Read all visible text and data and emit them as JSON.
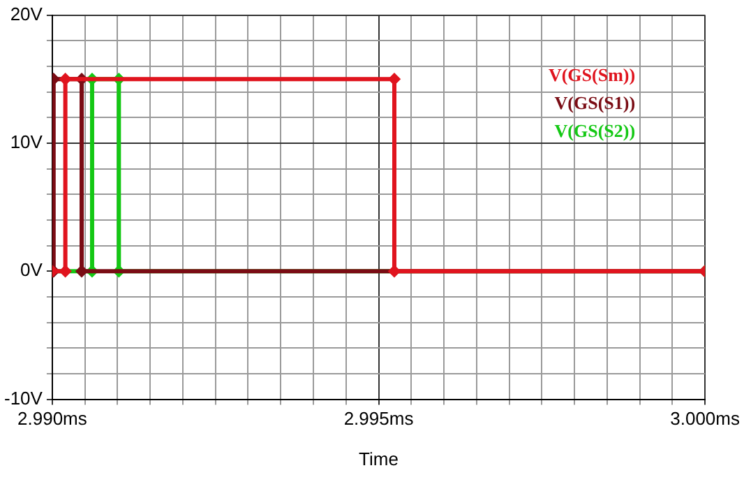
{
  "chart_data": {
    "type": "line",
    "xlabel": "Time",
    "legend": "top right",
    "grid": true,
    "marker": "diamond",
    "line_style": "solid",
    "xlim": [
      2.99,
      3.0
    ],
    "xticks": [
      {
        "value": 2.99,
        "label": "2.990ms"
      },
      {
        "value": 2.9905,
        "label": null
      },
      {
        "value": 2.991,
        "label": null
      },
      {
        "value": 2.9915,
        "label": null
      },
      {
        "value": 2.992,
        "label": null
      },
      {
        "value": 2.9925,
        "label": null
      },
      {
        "value": 2.993,
        "label": null
      },
      {
        "value": 2.9935,
        "label": null
      },
      {
        "value": 2.994,
        "label": null
      },
      {
        "value": 2.9945,
        "label": null
      },
      {
        "value": 2.995,
        "label": "2.995ms"
      },
      {
        "value": 2.9955,
        "label": null
      },
      {
        "value": 2.996,
        "label": null
      },
      {
        "value": 2.9965,
        "label": null
      },
      {
        "value": 2.997,
        "label": null
      },
      {
        "value": 2.9975,
        "label": null
      },
      {
        "value": 2.998,
        "label": null
      },
      {
        "value": 2.9985,
        "label": null
      },
      {
        "value": 2.999,
        "label": null
      },
      {
        "value": 2.9995,
        "label": null
      },
      {
        "value": 3.0,
        "label": "3.000ms"
      }
    ],
    "ylim": [
      -10,
      20
    ],
    "yticks": [
      {
        "value": -10,
        "label": "-10V"
      },
      {
        "value": -8,
        "label": null
      },
      {
        "value": -6,
        "label": null
      },
      {
        "value": -4,
        "label": null
      },
      {
        "value": -2,
        "label": null
      },
      {
        "value": 0,
        "label": "0V"
      },
      {
        "value": 2,
        "label": null
      },
      {
        "value": 4,
        "label": null
      },
      {
        "value": 6,
        "label": null
      },
      {
        "value": 8,
        "label": null
      },
      {
        "value": 10,
        "label": "10V"
      },
      {
        "value": 12,
        "label": null
      },
      {
        "value": 14,
        "label": null
      },
      {
        "value": 16,
        "label": null
      },
      {
        "value": 18,
        "label": null
      },
      {
        "value": 20,
        "label": "20V"
      }
    ],
    "series": [
      {
        "name": "V(GS(Sm))",
        "color": "#e0141e",
        "x": [
          2.99,
          2.9902,
          2.9902,
          2.99524,
          2.99524,
          3.0
        ],
        "values": [
          0,
          0,
          15,
          15,
          0,
          0
        ]
      },
      {
        "name": "V(GS(S1))",
        "color": "#7a0c14",
        "x": [
          2.99,
          2.99002,
          2.99002,
          2.99045,
          2.99045,
          3.0
        ],
        "values": [
          0,
          0,
          15,
          15,
          0,
          0
        ]
      },
      {
        "name": "V(GS(S2))",
        "color": "#14c814",
        "x": [
          2.99,
          2.99061,
          2.99061,
          2.99102,
          2.99102,
          3.0
        ],
        "values": [
          0,
          0,
          15,
          15,
          0,
          0
        ]
      }
    ]
  }
}
